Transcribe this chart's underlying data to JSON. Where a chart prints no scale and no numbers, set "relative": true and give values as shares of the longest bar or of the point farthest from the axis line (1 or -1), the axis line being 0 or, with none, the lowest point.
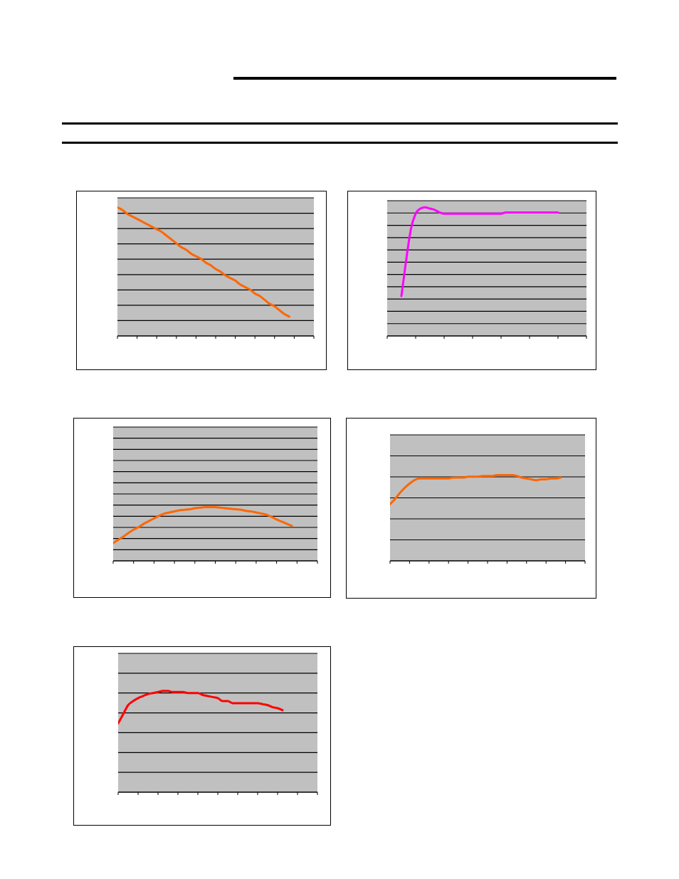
{
  "chart_data": [
    {
      "type": "line",
      "relative": true,
      "grid": "y",
      "categories": [
        null,
        null,
        null,
        null,
        null,
        null,
        null,
        null,
        null,
        null,
        null,
        null,
        null,
        null,
        null,
        null,
        null,
        null,
        null,
        null,
        null,
        null,
        null,
        null,
        null,
        null,
        null,
        null,
        null,
        null,
        null,
        null,
        null,
        null,
        null,
        null,
        null,
        null,
        null,
        null,
        null
      ],
      "series": [
        {
          "color": "#ff6600",
          "values": [
            1,
            0.98,
            0.95,
            0.93,
            0.91,
            0.89,
            0.87,
            0.85,
            0.83,
            0.81,
            0.78,
            0.75,
            0.72,
            0.69,
            0.67,
            0.64,
            0.62,
            0.6,
            0.57,
            0.55,
            0.52,
            0.5,
            0.47,
            0.45,
            0.43,
            0.4,
            0.38,
            0.36,
            0.33,
            0.31,
            0.28,
            0.25,
            0.23,
            0.2,
            0.17,
            0.15,
            null,
            null,
            null,
            null,
            null
          ]
        }
      ]
    },
    {
      "type": "line",
      "relative": true,
      "grid": "y",
      "categories": [
        null,
        null,
        null,
        null,
        null,
        null,
        null,
        null,
        null,
        null,
        null,
        null,
        null,
        null,
        null,
        null,
        null,
        null,
        null,
        null,
        null,
        null,
        null,
        null,
        null,
        null,
        null,
        null,
        null,
        null,
        null,
        null,
        null,
        null,
        null,
        null,
        null,
        null,
        null,
        null,
        null,
        null,
        null
      ],
      "series": [
        {
          "color": "#ff00ff",
          "values": [
            null,
            null,
            null,
            0.31,
            0.59,
            0.83,
            0.95,
            0.99,
            1,
            0.99,
            0.98,
            0.96,
            0.95,
            0.95,
            0.95,
            0.95,
            0.95,
            0.95,
            0.95,
            0.95,
            0.95,
            0.95,
            0.95,
            0.95,
            0.95,
            0.96,
            0.96,
            0.96,
            0.96,
            0.96,
            0.96,
            0.96,
            0.96,
            0.96,
            0.96,
            0.96,
            0.96,
            null,
            null,
            null,
            null,
            null,
            null
          ]
        }
      ]
    },
    {
      "type": "line",
      "relative": true,
      "grid": "y",
      "categories": [
        null,
        null,
        null,
        null,
        null,
        null,
        null,
        null,
        null,
        null,
        null,
        null,
        null,
        null,
        null,
        null,
        null,
        null,
        null,
        null,
        null,
        null,
        null,
        null,
        null,
        null,
        null,
        null,
        null,
        null,
        null,
        null,
        null,
        null,
        null,
        null,
        null,
        null,
        null,
        null,
        null
      ],
      "series": [
        {
          "color": "#ff6600",
          "values": [
            0.33,
            0.39,
            0.45,
            0.52,
            0.58,
            0.63,
            0.69,
            0.74,
            0.79,
            0.84,
            0.88,
            0.9,
            0.92,
            0.94,
            0.95,
            0.96,
            0.98,
            0.99,
            1,
            1,
            1,
            0.99,
            0.98,
            0.97,
            0.96,
            0.95,
            0.93,
            0.92,
            0.9,
            0.88,
            0.86,
            0.82,
            0.77,
            0.73,
            0.69,
            0.65,
            null,
            null,
            null,
            null,
            null
          ]
        }
      ]
    },
    {
      "type": "line",
      "relative": true,
      "grid": "y",
      "categories": [
        null,
        null,
        null,
        null,
        null,
        null,
        null,
        null,
        null,
        null,
        null,
        null,
        null,
        null,
        null,
        null,
        null,
        null,
        null,
        null,
        null,
        null,
        null,
        null,
        null,
        null,
        null,
        null,
        null,
        null,
        null,
        null,
        null,
        null,
        null,
        null,
        null,
        null,
        null,
        null,
        null
      ],
      "series": [
        {
          "color": "#ff6600",
          "values": [
            0.66,
            0.72,
            0.79,
            0.85,
            0.9,
            0.94,
            0.96,
            0.96,
            0.96,
            0.96,
            0.96,
            0.96,
            0.96,
            0.97,
            0.97,
            0.97,
            0.98,
            0.98,
            0.98,
            0.99,
            0.99,
            0.99,
            1,
            1,
            1,
            1,
            0.99,
            0.97,
            0.96,
            0.95,
            0.94,
            0.95,
            0.95,
            0.96,
            0.96,
            0.97,
            null,
            null,
            null,
            null,
            null
          ]
        }
      ]
    },
    {
      "type": "line",
      "relative": true,
      "grid": "y",
      "categories": [
        null,
        null,
        null,
        null,
        null,
        null,
        null,
        null,
        null,
        null,
        null,
        null,
        null,
        null,
        null,
        null,
        null,
        null,
        null,
        null,
        null,
        null,
        null,
        null,
        null,
        null,
        null,
        null,
        null,
        null,
        null,
        null,
        null,
        null,
        null,
        null,
        null,
        null,
        null,
        null,
        null
      ],
      "series": [
        {
          "color": "#ff0000",
          "values": [
            0.68,
            0.77,
            0.86,
            0.9,
            0.93,
            0.95,
            0.97,
            0.98,
            0.99,
            1,
            1,
            0.99,
            0.99,
            0.99,
            0.98,
            0.98,
            0.98,
            0.96,
            0.95,
            0.94,
            0.93,
            0.9,
            0.9,
            0.88,
            0.88,
            0.88,
            0.88,
            0.88,
            0.88,
            0.87,
            0.86,
            0.84,
            0.83,
            0.81,
            null,
            null,
            null,
            null,
            null,
            null,
            null
          ]
        }
      ]
    }
  ]
}
